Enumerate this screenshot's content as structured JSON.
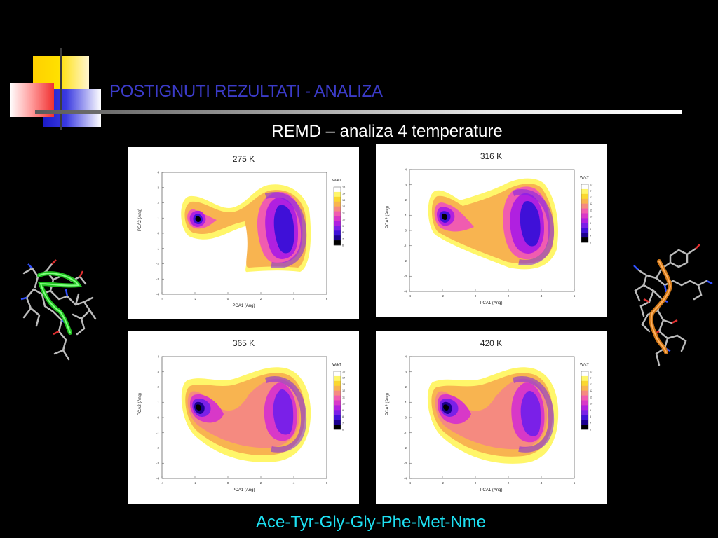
{
  "slide": {
    "title": "POSTIGNUTI REZULTATI - ANALIZA",
    "subtitle": "REMD – analiza 4 temperature",
    "footer": "Ace-Tyr-Gly-Gly-Phe-Met-Nme"
  },
  "panels": [
    {
      "title": "275 K",
      "xlabel": "PCA1 (Ang)",
      "ylabel": "PCA2 (Ang)",
      "colorbar_label": "W/kT"
    },
    {
      "title": "316 K",
      "xlabel": "PCA1 (Ang)",
      "ylabel": "PCA2 (Ang)",
      "colorbar_label": "W/kT"
    },
    {
      "title": "365 K",
      "xlabel": "PCA1 (Ang)",
      "ylabel": "PCA2 (Ang)",
      "colorbar_label": "W/kT"
    },
    {
      "title": "420 K",
      "xlabel": "PCA1 (Ang)",
      "ylabel": "PCA2 (Ang)",
      "colorbar_label": "W/kT"
    }
  ],
  "axes": {
    "x_ticks": [
      "-4",
      "-2",
      "0",
      "2",
      "4",
      "6"
    ],
    "y_ticks": [
      "4",
      "3",
      "2",
      "1",
      "0",
      "-1",
      "-2",
      "-3",
      "-4"
    ],
    "colorbar_ticks": [
      "15",
      "14",
      "13",
      "12",
      "11",
      "10",
      "9",
      "8",
      "7",
      "6"
    ]
  },
  "colors": {
    "title": "#3b3bc8",
    "footer": "#1ee0f2",
    "colormap": [
      "#000000",
      "#1c0090",
      "#3f10d8",
      "#7a20e8",
      "#b020e0",
      "#d838c8",
      "#f05cb0",
      "#f58a80",
      "#f8b450",
      "#fad830",
      "#fff66a",
      "#ffffff"
    ]
  }
}
